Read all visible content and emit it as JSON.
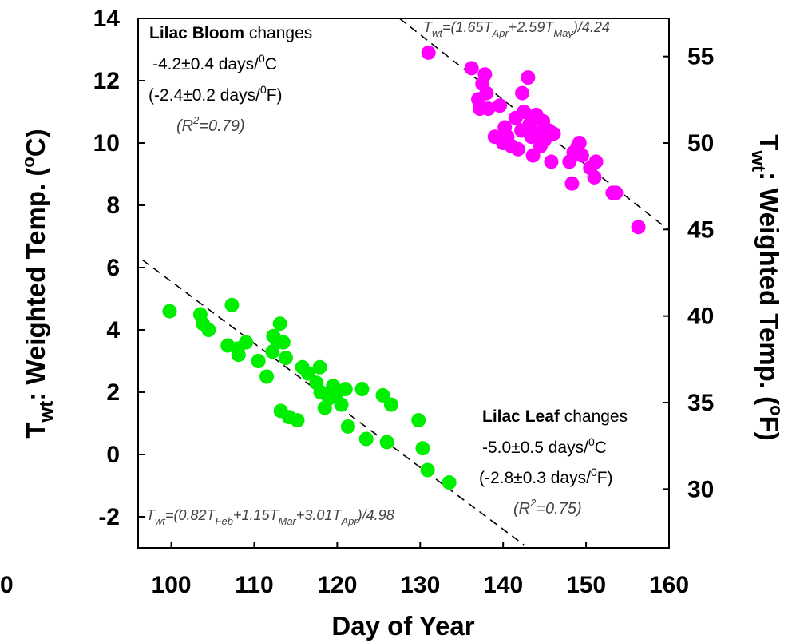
{
  "chart_data": {
    "type": "scatter",
    "xlabel": "Day of Year",
    "ylabel_left": {
      "main": "T",
      "sub": "wt",
      "rest": ": Weighted Temp. (",
      "sup": "o",
      "end": "C)"
    },
    "ylabel_right": {
      "main": "T",
      "sub": "wt",
      "rest": ": Weighted Temp. (",
      "sup": "o",
      "end": "F)"
    },
    "xlim": [
      96,
      160
    ],
    "ylim": [
      -3,
      14
    ],
    "y_right_lim_F": [
      26.6,
      57.2
    ],
    "x_ticks": [
      "100",
      "110",
      "120",
      "130",
      "140",
      "150",
      "160"
    ],
    "y_ticks_left": [
      "-2",
      "0",
      "2",
      "4",
      "6",
      "8",
      "10",
      "12",
      "14"
    ],
    "y_ticks_right": [
      "30",
      "35",
      "40",
      "45",
      "50",
      "55"
    ],
    "stray_label": "0",
    "series": [
      {
        "color": "#00ee00",
        "points": [
          [
            99.8,
            4.6
          ],
          [
            103.5,
            4.5
          ],
          [
            103.8,
            4.2
          ],
          [
            104.5,
            4.0
          ],
          [
            106.8,
            3.5
          ],
          [
            107.3,
            4.8
          ],
          [
            108.0,
            3.4
          ],
          [
            108.1,
            3.2
          ],
          [
            109.0,
            3.6
          ],
          [
            110.5,
            3.0
          ],
          [
            111.5,
            2.5
          ],
          [
            112.2,
            3.3
          ],
          [
            112.3,
            3.8
          ],
          [
            112.8,
            3.6
          ],
          [
            113.1,
            4.2
          ],
          [
            113.5,
            3.6
          ],
          [
            113.2,
            1.4
          ],
          [
            113.8,
            3.1
          ],
          [
            114.2,
            1.2
          ],
          [
            115.2,
            1.1
          ],
          [
            115.8,
            2.8
          ],
          [
            116.5,
            2.6
          ],
          [
            117.5,
            2.3
          ],
          [
            117.9,
            2.8
          ],
          [
            118.0,
            2.0
          ],
          [
            118.5,
            1.5
          ],
          [
            119.0,
            1.8
          ],
          [
            119.5,
            2.2
          ],
          [
            119.5,
            1.9
          ],
          [
            120.0,
            2.0
          ],
          [
            120.5,
            1.6
          ],
          [
            121.0,
            2.1
          ],
          [
            121.3,
            0.9
          ],
          [
            123.0,
            2.1
          ],
          [
            123.5,
            0.5
          ],
          [
            125.5,
            1.9
          ],
          [
            126.0,
            0.4
          ],
          [
            126.5,
            1.6
          ],
          [
            129.8,
            1.1
          ],
          [
            130.3,
            0.2
          ],
          [
            130.9,
            -0.5
          ],
          [
            133.5,
            -0.9
          ]
        ]
      },
      {
        "color": "#ff00ff",
        "points": [
          [
            131.0,
            12.9
          ],
          [
            136.2,
            12.4
          ],
          [
            137.0,
            11.4
          ],
          [
            137.2,
            11.1
          ],
          [
            137.5,
            11.9
          ],
          [
            137.8,
            12.2
          ],
          [
            138.0,
            11.6
          ],
          [
            138.2,
            11.1
          ],
          [
            139.0,
            10.2
          ],
          [
            139.6,
            11.2
          ],
          [
            140.0,
            10.0
          ],
          [
            140.2,
            10.5
          ],
          [
            140.5,
            10.2
          ],
          [
            141.0,
            9.9
          ],
          [
            141.5,
            10.8
          ],
          [
            141.8,
            9.8
          ],
          [
            142.2,
            10.4
          ],
          [
            142.3,
            11.6
          ],
          [
            142.5,
            11.0
          ],
          [
            143.0,
            12.1
          ],
          [
            143.2,
            10.6
          ],
          [
            143.4,
            10.2
          ],
          [
            143.6,
            9.6
          ],
          [
            144.0,
            10.9
          ],
          [
            144.2,
            10.3
          ],
          [
            144.5,
            9.9
          ],
          [
            144.8,
            10.7
          ],
          [
            145.0,
            10.1
          ],
          [
            145.5,
            10.4
          ],
          [
            145.8,
            9.4
          ],
          [
            146.1,
            10.3
          ],
          [
            148.0,
            9.4
          ],
          [
            148.3,
            8.7
          ],
          [
            148.5,
            9.7
          ],
          [
            149.0,
            9.9
          ],
          [
            149.2,
            10.0
          ],
          [
            149.5,
            9.6
          ],
          [
            150.5,
            9.2
          ],
          [
            151.0,
            8.9
          ],
          [
            151.2,
            9.4
          ],
          [
            153.2,
            8.4
          ],
          [
            153.6,
            8.4
          ],
          [
            156.3,
            7.3
          ]
        ]
      }
    ],
    "trend_lines": [
      {
        "x": [
          96.5,
          142.5
        ],
        "y": [
          6.25,
          -2.9
        ]
      },
      {
        "x": [
          127.5,
          160
        ],
        "y": [
          14.0,
          7.2
        ]
      }
    ],
    "annotations": {
      "bloom": {
        "title_bold": "Lilac Bloom",
        "title_rest": " changes",
        "line2_pre": "-4.2±0.4 days/",
        "line2_sup": "0",
        "line2_post": "C",
        "line3_pre": "(-2.4±0.2 days/",
        "line3_sup": "0",
        "line3_post": "F)",
        "r2_pre": "(R",
        "r2_sup": "2",
        "r2_post": "=0.79)",
        "eq": [
          {
            "t": "T",
            "s": ""
          },
          {
            "t": "wt",
            "s": "sub"
          },
          {
            "t": "=(1.65T",
            "s": ""
          },
          {
            "t": "Apr",
            "s": "sub"
          },
          {
            "t": "+2.59T",
            "s": ""
          },
          {
            "t": "May",
            "s": "sub"
          },
          {
            "t": ")/4.24",
            "s": ""
          }
        ]
      },
      "leaf": {
        "title_bold": "Lilac Leaf",
        "title_rest": " changes",
        "line2_pre": "-5.0±0.5 days/",
        "line2_sup": "0",
        "line2_post": "C",
        "line3_pre": "(-2.8±0.3 days/",
        "line3_sup": "0",
        "line3_post": "F)",
        "r2_pre": "(R",
        "r2_sup": "2",
        "r2_post": "=0.75)",
        "eq": [
          {
            "t": "T",
            "s": ""
          },
          {
            "t": "wt",
            "s": "sub"
          },
          {
            "t": "=(0.82T",
            "s": ""
          },
          {
            "t": "Feb",
            "s": "sub"
          },
          {
            "t": "+1.15T",
            "s": ""
          },
          {
            "t": "Mar",
            "s": "sub"
          },
          {
            "t": "+3.01T",
            "s": ""
          },
          {
            "t": "Apr",
            "s": "sub"
          },
          {
            "t": ")/4.98",
            "s": ""
          }
        ]
      }
    },
    "grid": false,
    "legend": "none"
  }
}
